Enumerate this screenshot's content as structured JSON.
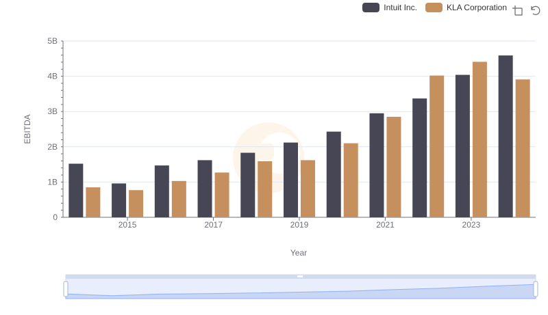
{
  "legend": {
    "items": [
      {
        "label": "Intuit Inc.",
        "color": "#474655"
      },
      {
        "label": "KLA Corporation",
        "color": "#c6905e"
      }
    ]
  },
  "toolbox": {
    "icons": [
      "zoom-icon",
      "restore-icon"
    ]
  },
  "chart_data": {
    "type": "bar",
    "title": "",
    "xlabel": "Year",
    "ylabel": "EBITDA",
    "x": [
      2014,
      2015,
      2016,
      2017,
      2018,
      2019,
      2020,
      2021,
      2022,
      2023,
      2024
    ],
    "x_tick_labels": [
      "2015",
      "2017",
      "2019",
      "2021",
      "2023"
    ],
    "y_tick_labels": [
      "0",
      "1B",
      "2B",
      "3B",
      "4B",
      "5B"
    ],
    "ylim": [
      0,
      5000000000
    ],
    "grid": true,
    "legend_position": "top-right",
    "series": [
      {
        "name": "Intuit Inc.",
        "color": "#474655",
        "values": [
          1520000000,
          960000000,
          1470000000,
          1620000000,
          1830000000,
          2120000000,
          2430000000,
          2950000000,
          3370000000,
          4040000000,
          4590000000
        ]
      },
      {
        "name": "KLA Corporation",
        "color": "#c6905e",
        "values": [
          850000000,
          770000000,
          1030000000,
          1270000000,
          1590000000,
          1620000000,
          2100000000,
          2850000000,
          4020000000,
          4410000000,
          3910000000
        ]
      }
    ]
  }
}
